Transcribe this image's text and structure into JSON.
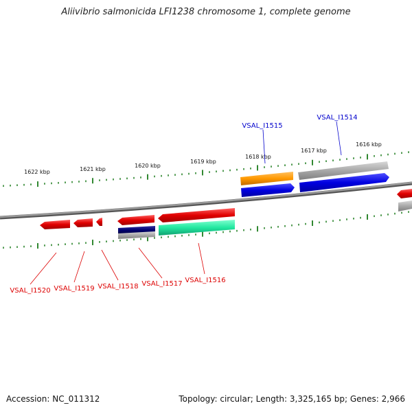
{
  "title": "Aliivibrio salmonicida LFI1238 chromosome 1, complete genome",
  "footer": {
    "accession": "Accession: NC_011312",
    "summary": "Topology: circular; Length: 3,325,165 bp; Genes: 2,966"
  },
  "ruler_ticks": [
    {
      "label": "1622 kbp"
    },
    {
      "label": "1621 kbp"
    },
    {
      "label": "1620 kbp"
    },
    {
      "label": "1619 kbp"
    },
    {
      "label": "1618 kbp"
    },
    {
      "label": "1617 kbp"
    },
    {
      "label": "1616 kbp"
    }
  ],
  "gene_labels": {
    "forward": [
      {
        "id": "VSAL_I1515",
        "color": "#0000cc"
      },
      {
        "id": "VSAL_I1514",
        "color": "#0000cc"
      }
    ],
    "reverse": [
      {
        "id": "VSAL_I1520",
        "color": "#dd0000"
      },
      {
        "id": "VSAL_I1519",
        "color": "#dd0000"
      },
      {
        "id": "VSAL_I1518",
        "color": "#dd0000"
      },
      {
        "id": "VSAL_I1517",
        "color": "#dd0000"
      },
      {
        "id": "VSAL_I1516",
        "color": "#dd0000"
      }
    ]
  },
  "colors": {
    "backbone": "#7a7a7a",
    "tick": "#1a7a1a",
    "forward_cds": "#0000e0",
    "reverse_cds": "#e00000",
    "orange": "#ff9900",
    "gray": "#a0a0a0",
    "teal": "#22e8a0",
    "navy": "#000070"
  }
}
